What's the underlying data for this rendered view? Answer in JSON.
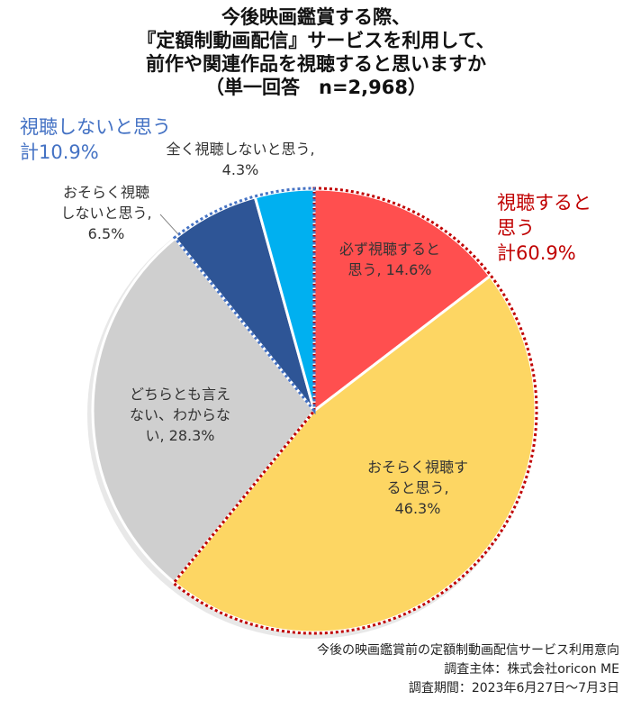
{
  "title": {
    "line1": "今後映画鑑賞する際、",
    "line2": "『定額制動画配信』サービスを利用して、",
    "line3": "前作や関連作品を視聴すると思いますか",
    "line4": "（単一回答　n=2,968）"
  },
  "chart_data": {
    "type": "pie",
    "title": "今後映画鑑賞する際、『定額制動画配信』サービスを利用して、前作や関連作品を視聴すると思いますか（単一回答　n=2,968）",
    "slices": [
      {
        "label_lines": [
          "必ず視聴すると",
          "思う, 14.6%"
        ],
        "value": 14.6,
        "color": "#ff4f4f"
      },
      {
        "label_lines": [
          "おそらく視聴す",
          "ると思う,",
          "46.3%"
        ],
        "value": 46.3,
        "color": "#fdd663"
      },
      {
        "label_lines": [
          "どちらとも言え",
          "ない、わからな",
          "い, 28.3%"
        ],
        "value": 28.3,
        "color": "#cfcfcf"
      },
      {
        "label_lines": [
          "おそらく視聴",
          "しないと思う,",
          "6.5%"
        ],
        "value": 6.5,
        "color": "#2e5596"
      },
      {
        "label_lines": [
          "全く視聴しないと思う,",
          "4.3%"
        ],
        "value": 4.3,
        "color": "#00b0f0"
      }
    ],
    "groups": [
      {
        "lines": [
          "視聴すると",
          "思う",
          "計60.9%"
        ],
        "color": "#c00000",
        "members": [
          0,
          1
        ]
      },
      {
        "lines": [
          "視聴しないと思う",
          "計10.9%"
        ],
        "color": "#4472c4",
        "members": [
          3,
          4
        ]
      }
    ]
  },
  "footer": {
    "line1": "今後の映画鑑賞前の定額制動画配信サービス利用意向",
    "line2": "調査主体：株式会社oricon ME",
    "line3": "調査期間：2023年6月27日～7月3日"
  }
}
